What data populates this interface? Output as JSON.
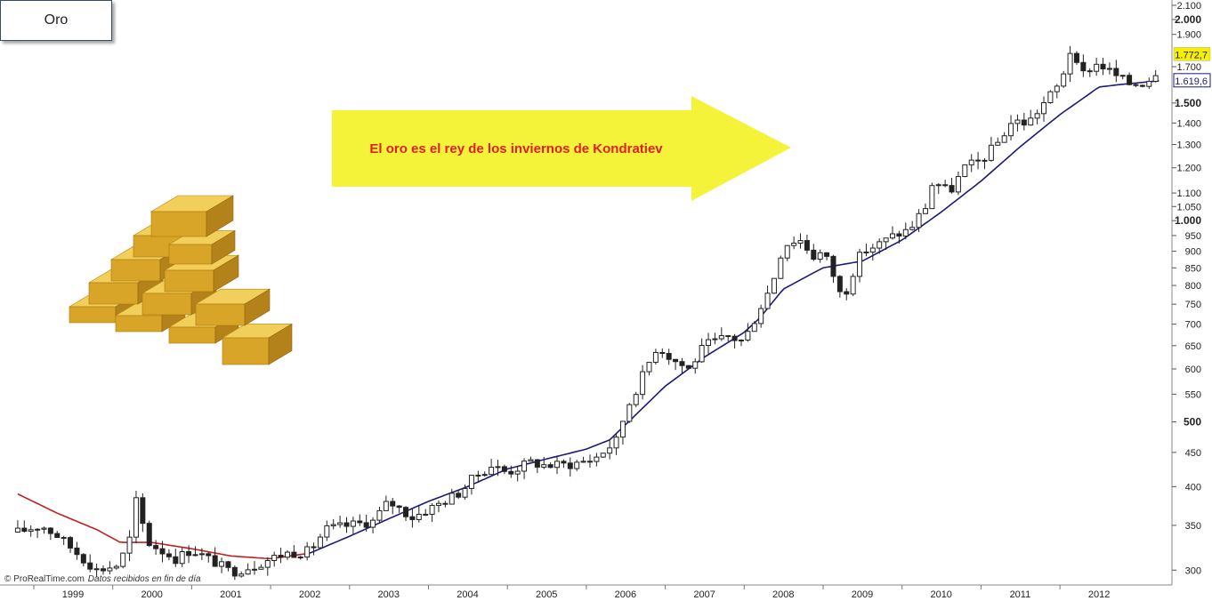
{
  "title": "Oro",
  "annotation": "El oro es el rey de los inviernos de Kondratiev",
  "credit": {
    "source": "© ProRealTime.com",
    "note": "Datos recibidos en fin de día"
  },
  "colors": {
    "up_candle": "#ffffff",
    "down_candle": "#222222",
    "wick": "#222222",
    "ma_below": "#1a1a7a",
    "ma_above": "#c02020",
    "arrow_fill": "#f5f23a",
    "annotation_text": "#e02020",
    "last_price_bg": "#f5f000",
    "ma_label_bg": "#ffffff",
    "ma_label_text": "#1a1a7a",
    "gold_bar": "#d9a528"
  },
  "icons": [
    "gold-bars-image",
    "yellow-arrow"
  ],
  "chart_data": {
    "type": "candlestick",
    "y_scale": "log",
    "ylim": [
      285,
      2100
    ],
    "y_ticks": [
      {
        "value": 300,
        "label": "300"
      },
      {
        "value": 350,
        "label": "350"
      },
      {
        "value": 400,
        "label": "400"
      },
      {
        "value": 450,
        "label": "450"
      },
      {
        "value": 500,
        "label": "500",
        "bold": true
      },
      {
        "value": 550,
        "label": "550"
      },
      {
        "value": 600,
        "label": "600"
      },
      {
        "value": 650,
        "label": "650"
      },
      {
        "value": 700,
        "label": "700"
      },
      {
        "value": 750,
        "label": "750"
      },
      {
        "value": 800,
        "label": "800"
      },
      {
        "value": 850,
        "label": "850"
      },
      {
        "value": 900,
        "label": "900"
      },
      {
        "value": 950,
        "label": "950"
      },
      {
        "value": 1000,
        "label": "1.000",
        "bold": true
      },
      {
        "value": 1050,
        "label": "1.050"
      },
      {
        "value": 1100,
        "label": "1.100"
      },
      {
        "value": 1200,
        "label": "1.200"
      },
      {
        "value": 1300,
        "label": "1.300"
      },
      {
        "value": 1400,
        "label": "1.400"
      },
      {
        "value": 1500,
        "label": "1.500",
        "bold": true
      },
      {
        "value": 1700,
        "label": "1.700"
      },
      {
        "value": 1900,
        "label": "1.900"
      },
      {
        "value": 2000,
        "label": "2.000",
        "bold": true
      },
      {
        "value": 2100,
        "label": "2.100"
      }
    ],
    "x_range": [
      1998.3,
      2012.95
    ],
    "x_ticks": [
      {
        "value": 1999,
        "label": "1999"
      },
      {
        "value": 2000,
        "label": "2000"
      },
      {
        "value": 2001,
        "label": "2001"
      },
      {
        "value": 2002,
        "label": "2002"
      },
      {
        "value": 2003,
        "label": "2003"
      },
      {
        "value": 2004,
        "label": "2004"
      },
      {
        "value": 2005,
        "label": "2005"
      },
      {
        "value": 2006,
        "label": "2006"
      },
      {
        "value": 2007,
        "label": "2007"
      },
      {
        "value": 2008,
        "label": "2008"
      },
      {
        "value": 2009,
        "label": "2009"
      },
      {
        "value": 2010,
        "label": "2010"
      },
      {
        "value": 2011,
        "label": "2011"
      },
      {
        "value": 2012,
        "label": "2012"
      }
    ],
    "last_price": {
      "value": 1772.7,
      "label": "1.772,7"
    },
    "ma_last": {
      "value": 1619.6,
      "label": "1.619,6"
    },
    "close_anchors": [
      [
        1998.3,
        342
      ],
      [
        1998.6,
        350
      ],
      [
        1998.8,
        338
      ],
      [
        1999.0,
        322
      ],
      [
        1999.3,
        300
      ],
      [
        1999.55,
        305
      ],
      [
        1999.7,
        325
      ],
      [
        1999.8,
        380
      ],
      [
        1999.95,
        330
      ],
      [
        2000.3,
        312
      ],
      [
        2000.5,
        322
      ],
      [
        2000.8,
        308
      ],
      [
        2001.0,
        298
      ],
      [
        2001.3,
        305
      ],
      [
        2001.5,
        312
      ],
      [
        2001.7,
        318
      ],
      [
        2002.0,
        320
      ],
      [
        2002.2,
        345
      ],
      [
        2002.5,
        350
      ],
      [
        2002.8,
        355
      ],
      [
        2003.0,
        380
      ],
      [
        2003.3,
        360
      ],
      [
        2003.6,
        375
      ],
      [
        2003.9,
        392
      ],
      [
        2004.1,
        415
      ],
      [
        2004.3,
        430
      ],
      [
        2004.5,
        420
      ],
      [
        2004.8,
        435
      ],
      [
        2005.0,
        430
      ],
      [
        2005.3,
        432
      ],
      [
        2005.6,
        440
      ],
      [
        2005.9,
        470
      ],
      [
        2006.0,
        520
      ],
      [
        2006.2,
        580
      ],
      [
        2006.4,
        650
      ],
      [
        2006.6,
        620
      ],
      [
        2006.8,
        600
      ],
      [
        2007.0,
        650
      ],
      [
        2007.3,
        670
      ],
      [
        2007.5,
        660
      ],
      [
        2007.7,
        740
      ],
      [
        2007.85,
        800
      ],
      [
        2008.0,
        920
      ],
      [
        2008.2,
        940
      ],
      [
        2008.4,
        880
      ],
      [
        2008.5,
        900
      ],
      [
        2008.6,
        850
      ],
      [
        2008.75,
        760
      ],
      [
        2008.9,
        850
      ],
      [
        2009.0,
        900
      ],
      [
        2009.2,
        920
      ],
      [
        2009.4,
        950
      ],
      [
        2009.6,
        970
      ],
      [
        2009.8,
        1050
      ],
      [
        2009.9,
        1150
      ],
      [
        2010.1,
        1100
      ],
      [
        2010.3,
        1200
      ],
      [
        2010.5,
        1230
      ],
      [
        2010.7,
        1300
      ],
      [
        2010.9,
        1410
      ],
      [
        2011.1,
        1400
      ],
      [
        2011.3,
        1500
      ],
      [
        2011.5,
        1600
      ],
      [
        2011.65,
        1820
      ],
      [
        2011.75,
        1640
      ],
      [
        2011.9,
        1700
      ],
      [
        2012.0,
        1720
      ],
      [
        2012.2,
        1650
      ],
      [
        2012.4,
        1600
      ],
      [
        2012.55,
        1610
      ],
      [
        2012.7,
        1650
      ],
      [
        2012.78,
        1770
      ]
    ],
    "ma_anchors": [
      [
        1998.3,
        390
      ],
      [
        1998.8,
        365
      ],
      [
        1999.3,
        345
      ],
      [
        1999.6,
        330
      ],
      [
        2000.0,
        330
      ],
      [
        2000.5,
        323
      ],
      [
        2001.0,
        315
      ],
      [
        2001.5,
        312
      ],
      [
        2002.0,
        318
      ],
      [
        2002.5,
        337
      ],
      [
        2003.0,
        358
      ],
      [
        2003.5,
        380
      ],
      [
        2004.0,
        400
      ],
      [
        2004.5,
        425
      ],
      [
        2005.0,
        440
      ],
      [
        2005.5,
        455
      ],
      [
        2005.8,
        470
      ],
      [
        2006.0,
        495
      ],
      [
        2006.5,
        565
      ],
      [
        2007.0,
        625
      ],
      [
        2007.5,
        680
      ],
      [
        2007.7,
        715
      ],
      [
        2008.0,
        790
      ],
      [
        2008.5,
        850
      ],
      [
        2009.0,
        870
      ],
      [
        2009.5,
        935
      ],
      [
        2010.0,
        1030
      ],
      [
        2010.5,
        1145
      ],
      [
        2011.0,
        1290
      ],
      [
        2011.5,
        1440
      ],
      [
        2012.0,
        1585
      ],
      [
        2012.3,
        1600
      ],
      [
        2012.78,
        1620
      ]
    ]
  }
}
